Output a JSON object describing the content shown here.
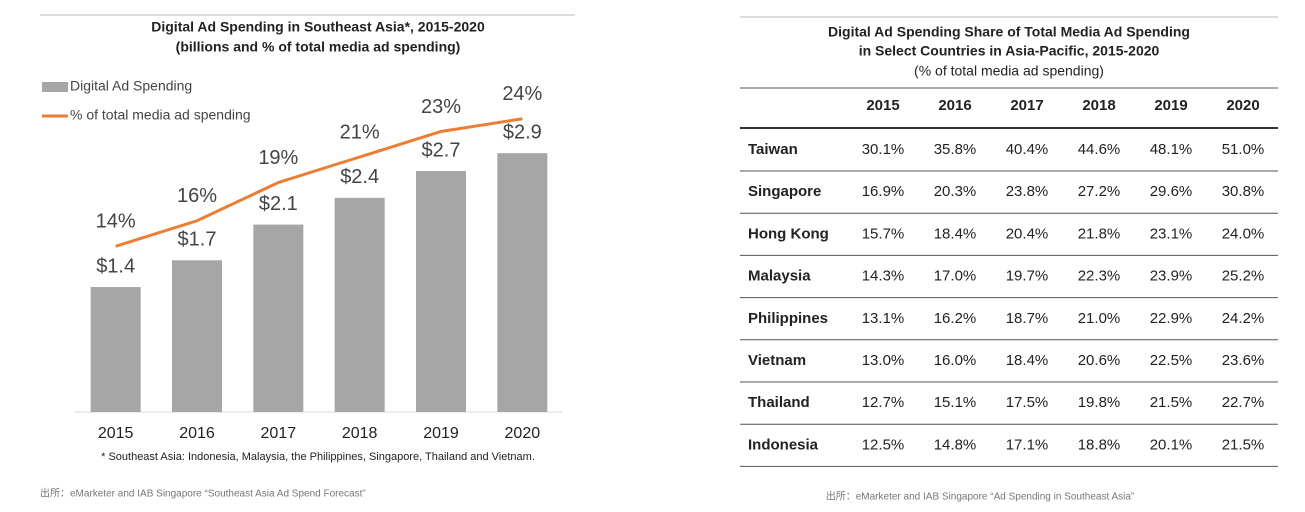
{
  "chart_data": {
    "type": "bar",
    "title": "Digital Ad Spending in Southeast Asia*, 2015-2020",
    "subtitle": "(billions and % of total media ad spending)",
    "categories": [
      "2015",
      "2016",
      "2017",
      "2018",
      "2019",
      "2020"
    ],
    "series": [
      {
        "name": "Digital Ad Spending",
        "type": "bar",
        "color": "#a6a6a6",
        "values": [
          1.4,
          1.7,
          2.1,
          2.4,
          2.7,
          2.9
        ],
        "value_labels": [
          "$1.4",
          "$1.7",
          "$2.1",
          "$2.4",
          "$2.7",
          "$2.9"
        ]
      },
      {
        "name": "% of total media ad spending",
        "type": "line",
        "axis": "y2",
        "color": "#ed7d31",
        "values": [
          14,
          16,
          19,
          21,
          23,
          24
        ],
        "value_labels": [
          "14%",
          "16%",
          "19%",
          "21%",
          "23%",
          "24%"
        ]
      }
    ],
    "ylim": [
      0,
      4
    ],
    "y2lim": [
      1,
      29
    ],
    "grid": false,
    "legend": "top-left",
    "footnote": "* Southeast Asia: Indonesia, Malaysia, the Philippines, Singapore, Thailand and Vietnam.",
    "source": "出所：eMarketer and IAB Singapore “Southeast Asia Ad Spend Forecast”"
  },
  "table": {
    "title": "Digital Ad Spending Share of Total Media Ad Spending",
    "title_line2": "in Select Countries in Asia-Pacific, 2015-2020",
    "subtitle": "(% of total media ad spending)",
    "columns": [
      "2015",
      "2016",
      "2017",
      "2018",
      "2019",
      "2020"
    ],
    "rows": [
      [
        "Taiwan",
        "30.1%",
        "35.8%",
        "40.4%",
        "44.6%",
        "48.1%",
        "51.0%"
      ],
      [
        "Singapore",
        "16.9%",
        "20.3%",
        "23.8%",
        "27.2%",
        "29.6%",
        "30.8%"
      ],
      [
        "Hong Kong",
        "15.7%",
        "18.4%",
        "20.4%",
        "21.8%",
        "23.1%",
        "24.0%"
      ],
      [
        "Malaysia",
        "14.3%",
        "17.0%",
        "19.7%",
        "22.3%",
        "23.9%",
        "25.2%"
      ],
      [
        "Philippines",
        "13.1%",
        "16.2%",
        "18.7%",
        "21.0%",
        "22.9%",
        "24.2%"
      ],
      [
        "Vietnam",
        "13.0%",
        "16.0%",
        "18.4%",
        "20.6%",
        "22.5%",
        "23.6%"
      ],
      [
        "Thailand",
        "12.7%",
        "15.1%",
        "17.5%",
        "19.8%",
        "21.5%",
        "22.7%"
      ],
      [
        "Indonesia",
        "12.5%",
        "14.8%",
        "17.1%",
        "18.8%",
        "20.1%",
        "21.5%"
      ]
    ],
    "source": "出所：eMarketer and IAB Singapore “Ad Spending in Southeast Asia”"
  }
}
